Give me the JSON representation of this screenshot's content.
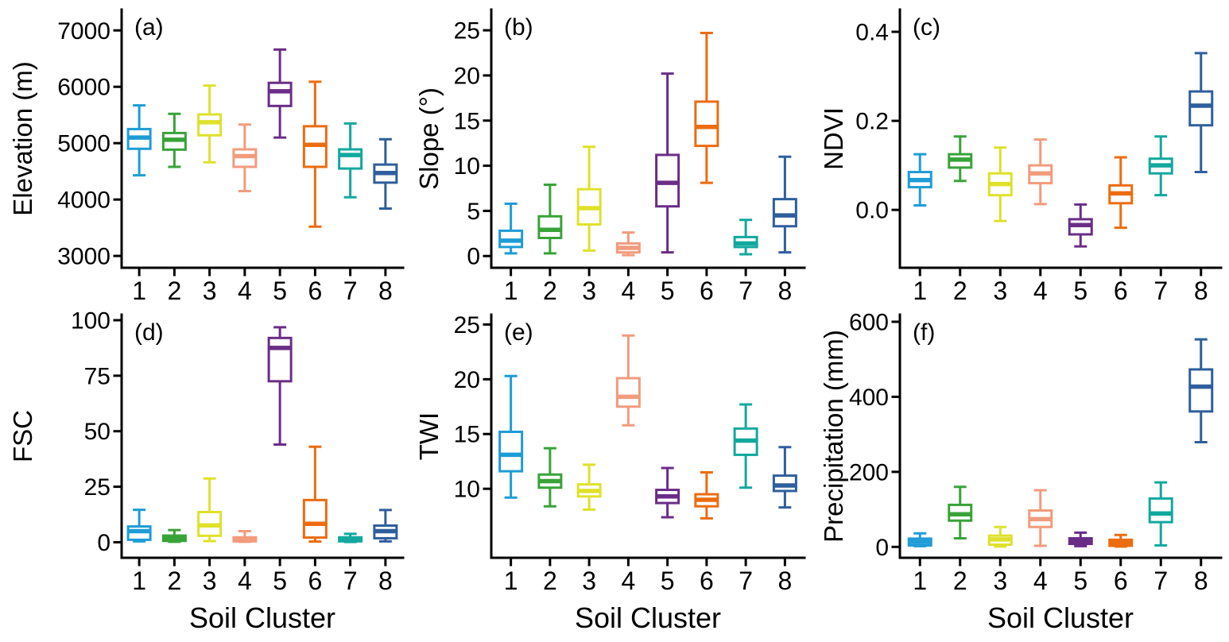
{
  "figure": {
    "background": "#ffffff",
    "axis_color": "#000000",
    "description": "Boxplots of terrain and climate variables per soil cluster"
  },
  "chart_data": {
    "type": "box",
    "categories": [
      "1",
      "2",
      "3",
      "4",
      "5",
      "6",
      "7",
      "8"
    ],
    "xlabel": "Soil Cluster",
    "legend_position": "none",
    "grid": false,
    "cluster_colors": [
      "#1e9cd6",
      "#38a338",
      "#dfe12b",
      "#f29b7d",
      "#6a2d87",
      "#ec6c10",
      "#12a89e",
      "#2f5e9d"
    ],
    "panels": [
      {
        "letter": "(a)",
        "ylabel": "Elevation (m)",
        "ylim": [
          2790,
          7370
        ],
        "yticks": [
          3000,
          4000,
          5000,
          6000,
          7000
        ],
        "ytick_labels": [
          "3000",
          "4000",
          "5000",
          "6000",
          "7000"
        ],
        "boxes": [
          [
            4430,
            4900,
            5100,
            5250,
            5670
          ],
          [
            4580,
            4885,
            5060,
            5180,
            5520
          ],
          [
            4660,
            5140,
            5370,
            5510,
            6020
          ],
          [
            4150,
            4580,
            4770,
            4890,
            5330
          ],
          [
            5100,
            5660,
            5920,
            6070,
            6660
          ],
          [
            3520,
            4580,
            4970,
            5300,
            6090
          ],
          [
            4040,
            4550,
            4790,
            4890,
            5350
          ],
          [
            3840,
            4300,
            4470,
            4620,
            5070
          ]
        ]
      },
      {
        "letter": "(b)",
        "ylabel": "Slope (°)",
        "ylim": [
          -1.3,
          27.3
        ],
        "yticks": [
          0,
          5,
          10,
          15,
          20,
          25
        ],
        "ytick_labels": [
          "0",
          "5",
          "10",
          "15",
          "20",
          "25"
        ],
        "boxes": [
          [
            0.3,
            1.0,
            1.7,
            2.8,
            5.8
          ],
          [
            0.3,
            2.0,
            2.9,
            4.4,
            7.9
          ],
          [
            0.6,
            3.5,
            5.3,
            7.4,
            12.1
          ],
          [
            0.1,
            0.4,
            0.9,
            1.4,
            2.6
          ],
          [
            0.4,
            5.5,
            8.1,
            11.2,
            20.2
          ],
          [
            8.1,
            12.2,
            14.3,
            17.1,
            24.7
          ],
          [
            0.2,
            1.0,
            1.4,
            2.1,
            4.0
          ],
          [
            0.4,
            3.3,
            4.5,
            6.3,
            11.0
          ]
        ]
      },
      {
        "letter": "(c)",
        "ylabel": "NDVI",
        "ylim": [
          -0.13,
          0.45
        ],
        "yticks": [
          0.0,
          0.2,
          0.4
        ],
        "ytick_labels": [
          "0.0",
          "0.2",
          "0.4"
        ],
        "boxes": [
          [
            0.01,
            0.051,
            0.067,
            0.085,
            0.125
          ],
          [
            0.065,
            0.095,
            0.113,
            0.125,
            0.165
          ],
          [
            -0.025,
            0.033,
            0.058,
            0.082,
            0.14
          ],
          [
            0.013,
            0.06,
            0.082,
            0.1,
            0.158
          ],
          [
            -0.082,
            -0.055,
            -0.034,
            -0.021,
            0.012
          ],
          [
            -0.04,
            0.015,
            0.037,
            0.055,
            0.118
          ],
          [
            0.033,
            0.082,
            0.1,
            0.115,
            0.165
          ],
          [
            0.085,
            0.19,
            0.234,
            0.266,
            0.352
          ]
        ]
      },
      {
        "letter": "(d)",
        "ylabel": "FSC",
        "ylim": [
          -7,
          102.5
        ],
        "yticks": [
          0,
          25,
          50,
          75,
          100
        ],
        "ytick_labels": [
          "0",
          "25",
          "50",
          "75",
          "100"
        ],
        "boxes": [
          [
            0.4,
            1.1,
            5.0,
            7.1,
            14.6
          ],
          [
            0.2,
            0.6,
            1.8,
            3.0,
            5.5
          ],
          [
            0.5,
            2.9,
            7.6,
            13.6,
            28.7
          ],
          [
            0.2,
            0.4,
            1.2,
            2.2,
            5.0
          ],
          [
            44.0,
            72.5,
            87.5,
            92.0,
            96.8
          ],
          [
            0.3,
            2.1,
            8.3,
            19.0,
            43.0
          ],
          [
            0.1,
            0.4,
            1.2,
            2.2,
            3.8
          ],
          [
            0.4,
            1.8,
            5.0,
            7.5,
            14.5
          ]
        ]
      },
      {
        "letter": "(e)",
        "ylabel": "TWI",
        "ylim": [
          3.7,
          25.9
        ],
        "yticks": [
          10,
          15,
          20,
          25
        ],
        "ytick_labels": [
          "10",
          "15",
          "20",
          "25"
        ],
        "boxes": [
          [
            9.2,
            11.6,
            13.1,
            15.2,
            20.3
          ],
          [
            8.4,
            10.1,
            10.7,
            11.3,
            13.7
          ],
          [
            8.1,
            9.3,
            9.8,
            10.4,
            12.2
          ],
          [
            15.8,
            17.5,
            18.4,
            20.1,
            24.0
          ],
          [
            7.4,
            8.7,
            9.3,
            9.9,
            11.9
          ],
          [
            7.3,
            8.4,
            9.0,
            9.5,
            11.5
          ],
          [
            10.1,
            13.1,
            14.4,
            15.5,
            17.7
          ],
          [
            8.3,
            9.8,
            10.3,
            11.2,
            13.8
          ]
        ]
      },
      {
        "letter": "(f)",
        "ylabel": "Precipitation (mm)",
        "ylim": [
          -29,
          619
        ],
        "yticks": [
          0,
          200,
          400,
          600
        ],
        "ytick_labels": [
          "0",
          "200",
          "400",
          "600"
        ],
        "boxes": [
          [
            2,
            4,
            13,
            22,
            36
          ],
          [
            23,
            70,
            87,
            112,
            160
          ],
          [
            1,
            6,
            20,
            30,
            53
          ],
          [
            3,
            53,
            74,
            97,
            151
          ],
          [
            2,
            8,
            15,
            23,
            38
          ],
          [
            1,
            3,
            11,
            19,
            32
          ],
          [
            4,
            66,
            89,
            129,
            172
          ],
          [
            279,
            361,
            427,
            473,
            553
          ]
        ]
      }
    ]
  }
}
